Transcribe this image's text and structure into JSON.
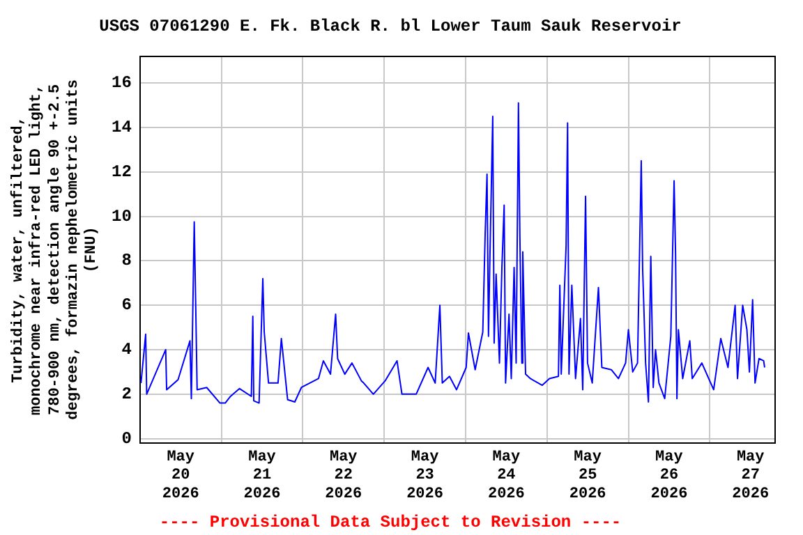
{
  "chart_data": {
    "type": "line",
    "title": "USGS 07061290 E. Fk. Black R. bl Lower Taum Sauk Reservoir",
    "ylabel": "Turbidity, water, unfiltered,\nmonochrome near infra-red LED light,\n780-900 nm, detection angle 90 +-2.5\ndegrees, formazin nephelometric units\n(FNU)",
    "annotations": [
      "---- Provisional Data Subject to Revision ----"
    ],
    "x": [
      "2026-05-20T00:18",
      "2026-05-20T01:41",
      "2026-05-20T01:59",
      "2026-05-20T07:35",
      "2026-05-20T07:52",
      "2026-05-20T11:14",
      "2026-05-20T14:44",
      "2026-05-20T15:09",
      "2026-05-20T16:00",
      "2026-05-20T16:25",
      "2026-05-20T16:51",
      "2026-05-20T19:40",
      "2026-05-20T23:35",
      "2026-05-21T01:08",
      "2026-05-21T02:41",
      "2026-05-21T05:21",
      "2026-05-21T08:50",
      "2026-05-21T09:16",
      "2026-05-21T09:33",
      "2026-05-21T11:07",
      "2026-05-21T12:13",
      "2026-05-21T12:38",
      "2026-05-21T13:54",
      "2026-05-21T16:42",
      "2026-05-21T17:41",
      "2026-05-21T19:32",
      "2026-05-21T21:39",
      "2026-05-21T23:35",
      "2026-05-22T04:38",
      "2026-05-22T06:04",
      "2026-05-22T08:10",
      "2026-05-22T09:41",
      "2026-05-22T10:16",
      "2026-05-22T12:23",
      "2026-05-22T14:30",
      "2026-05-22T17:16",
      "2026-05-22T17:58",
      "2026-05-22T20:48",
      "2026-05-23T00:17",
      "2026-05-23T03:47",
      "2026-05-23T05:14",
      "2026-05-23T09:26",
      "2026-05-23T12:56",
      "2026-05-23T15:02",
      "2026-05-23T16:25",
      "2026-05-23T17:08",
      "2026-05-23T19:15",
      "2026-05-23T21:20",
      "2026-05-24T00:10",
      "2026-05-24T00:50",
      "2026-05-24T02:49",
      "2026-05-24T05:04",
      "2026-05-24T05:46",
      "2026-05-24T06:19",
      "2026-05-24T06:45",
      "2026-05-24T07:09",
      "2026-05-24T08:00",
      "2026-05-24T08:25",
      "2026-05-24T09:00",
      "2026-05-24T09:59",
      "2026-05-24T10:42",
      "2026-05-24T11:22",
      "2026-05-24T11:47",
      "2026-05-24T12:48",
      "2026-05-24T13:28",
      "2026-05-24T14:18",
      "2026-05-24T14:54",
      "2026-05-24T15:35",
      "2026-05-24T16:00",
      "2026-05-24T16:35",
      "2026-05-24T16:51",
      "2026-05-24T17:41",
      "2026-05-24T19:06",
      "2026-05-24T22:36",
      "2026-05-25T00:43",
      "2026-05-25T03:22",
      "2026-05-25T03:47",
      "2026-05-25T04:12",
      "2026-05-25T05:38",
      "2026-05-25T06:04",
      "2026-05-25T06:29",
      "2026-05-25T07:19",
      "2026-05-25T08:25",
      "2026-05-25T09:52",
      "2026-05-25T10:32",
      "2026-05-25T11:22",
      "2026-05-25T11:57",
      "2026-05-25T13:20",
      "2026-05-25T15:10",
      "2026-05-25T16:10",
      "2026-05-25T18:57",
      "2026-05-25T21:03",
      "2026-05-25T23:10",
      "2026-05-26T00:00",
      "2026-05-26T01:16",
      "2026-05-26T02:41",
      "2026-05-26T03:47",
      "2026-05-26T04:12",
      "2026-05-26T05:04",
      "2026-05-26T05:54",
      "2026-05-26T06:36",
      "2026-05-26T07:19",
      "2026-05-26T08:00",
      "2026-05-26T09:00",
      "2026-05-26T10:42",
      "2026-05-26T12:30",
      "2026-05-26T13:28",
      "2026-05-26T13:54",
      "2026-05-26T14:18",
      "2026-05-26T14:44",
      "2026-05-26T16:00",
      "2026-05-26T18:06",
      "2026-05-26T18:49",
      "2026-05-26T21:39",
      "2026-05-27T01:08",
      "2026-05-27T03:14",
      "2026-05-27T05:21",
      "2026-05-27T07:28",
      "2026-05-27T08:10",
      "2026-05-27T09:41",
      "2026-05-27T10:56",
      "2026-05-27T11:40",
      "2026-05-27T12:37",
      "2026-05-27T13:20",
      "2026-05-27T14:30",
      "2026-05-27T15:52",
      "2026-05-27T16:10"
    ],
    "series": [
      {
        "color": "#0000ff",
        "values": [
          2.5,
          4.7,
          2.0,
          4.0,
          2.2,
          2.65,
          4.4,
          1.8,
          9.75,
          6.15,
          2.2,
          2.3,
          1.6,
          1.6,
          1.9,
          2.25,
          1.9,
          5.5,
          1.7,
          1.6,
          7.2,
          4.8,
          2.5,
          2.5,
          4.5,
          1.75,
          1.65,
          2.3,
          2.7,
          3.5,
          2.9,
          5.6,
          3.6,
          2.9,
          3.4,
          2.6,
          2.5,
          2.0,
          2.6,
          3.5,
          2.0,
          2.0,
          3.2,
          2.5,
          6.0,
          2.5,
          2.8,
          2.2,
          3.2,
          4.75,
          3.1,
          4.8,
          9.2,
          11.9,
          4.6,
          8.0,
          14.5,
          4.3,
          7.4,
          3.4,
          7.7,
          10.5,
          2.5,
          5.6,
          2.7,
          7.7,
          3.4,
          15.1,
          9.1,
          3.4,
          8.4,
          2.9,
          2.7,
          2.4,
          2.7,
          2.8,
          6.9,
          2.9,
          8.7,
          14.2,
          2.9,
          6.9,
          2.7,
          5.4,
          2.2,
          10.9,
          3.4,
          2.5,
          6.8,
          3.2,
          3.1,
          2.7,
          3.4,
          4.9,
          3.0,
          3.4,
          12.5,
          7.6,
          3.4,
          1.65,
          8.2,
          2.3,
          4.0,
          2.5,
          1.8,
          4.6,
          11.6,
          8.3,
          1.8,
          4.9,
          2.7,
          4.4,
          2.7,
          3.4,
          2.2,
          4.5,
          3.2,
          6.0,
          2.7,
          6.0,
          4.9,
          3.0,
          6.25,
          2.5,
          3.6,
          3.5,
          3.2
        ]
      }
    ],
    "xlim": [
      "2026-05-20T00:00",
      "2026-05-27T19:15"
    ],
    "xticks": [
      {
        "value": "2026-05-20T12:00",
        "label": "May\n20\n2026"
      },
      {
        "value": "2026-05-21T00:00",
        "label": null
      },
      {
        "value": "2026-05-21T12:00",
        "label": "May\n21\n2026"
      },
      {
        "value": "2026-05-22T00:00",
        "label": null
      },
      {
        "value": "2026-05-22T12:00",
        "label": "May\n22\n2026"
      },
      {
        "value": "2026-05-23T00:00",
        "label": null
      },
      {
        "value": "2026-05-23T12:00",
        "label": "May\n23\n2026"
      },
      {
        "value": "2026-05-24T00:00",
        "label": null
      },
      {
        "value": "2026-05-24T12:00",
        "label": "May\n24\n2026"
      },
      {
        "value": "2026-05-25T00:00",
        "label": null
      },
      {
        "value": "2026-05-25T12:00",
        "label": "May\n25\n2026"
      },
      {
        "value": "2026-05-26T00:00",
        "label": null
      },
      {
        "value": "2026-05-26T12:00",
        "label": "May\n26\n2026"
      },
      {
        "value": "2026-05-27T00:00",
        "label": null
      },
      {
        "value": "2026-05-27T12:00",
        "label": "May\n27\n2026"
      }
    ],
    "ylim": [
      -0.2,
      17.2
    ],
    "yticks": [
      0,
      2,
      4,
      6,
      8,
      10,
      12,
      14,
      16
    ],
    "grid": true,
    "legend": false,
    "marker": "none",
    "line_style": "solid"
  }
}
